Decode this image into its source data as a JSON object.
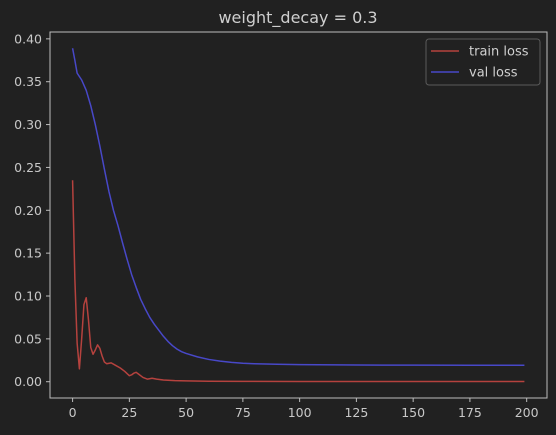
{
  "chart_data": {
    "type": "line",
    "title": "weight_decay = 0.3",
    "xlabel": "",
    "ylabel": "",
    "xlim": [
      -9.95,
      208.95
    ],
    "ylim": [
      -0.019,
      0.408
    ],
    "xticks": [
      0,
      25,
      50,
      75,
      100,
      125,
      150,
      175,
      200
    ],
    "yticks": [
      0.0,
      0.05,
      0.1,
      0.15,
      0.2,
      0.25,
      0.3,
      0.35,
      0.4
    ],
    "ytick_labels": [
      "0.00",
      "0.05",
      "0.10",
      "0.15",
      "0.20",
      "0.25",
      "0.30",
      "0.35",
      "0.40"
    ],
    "legend": {
      "placement": "upper-right"
    },
    "grid": false,
    "colors": {
      "background": "#212121",
      "axes": "#bdbdbd"
    },
    "series": [
      {
        "name": "train loss",
        "color": "#b5423e",
        "points": [
          [
            0,
            0.235
          ],
          [
            1,
            0.12
          ],
          [
            2,
            0.045
          ],
          [
            3,
            0.015
          ],
          [
            4,
            0.05
          ],
          [
            5,
            0.09
          ],
          [
            6,
            0.098
          ],
          [
            7,
            0.072
          ],
          [
            8,
            0.04
          ],
          [
            9,
            0.032
          ],
          [
            10,
            0.037
          ],
          [
            11,
            0.043
          ],
          [
            12,
            0.039
          ],
          [
            13,
            0.03
          ],
          [
            14,
            0.023
          ],
          [
            15,
            0.021
          ],
          [
            17,
            0.022
          ],
          [
            19,
            0.019
          ],
          [
            21,
            0.016
          ],
          [
            23,
            0.012
          ],
          [
            25,
            0.007
          ],
          [
            26,
            0.008
          ],
          [
            27,
            0.01
          ],
          [
            28,
            0.011
          ],
          [
            29,
            0.009
          ],
          [
            31,
            0.005
          ],
          [
            33,
            0.003
          ],
          [
            35,
            0.004
          ],
          [
            37,
            0.003
          ],
          [
            40,
            0.002
          ],
          [
            45,
            0.0013
          ],
          [
            50,
            0.001
          ],
          [
            60,
            0.0006
          ],
          [
            75,
            0.0004
          ],
          [
            100,
            0.0003
          ],
          [
            150,
            0.0002
          ],
          [
            199,
            0.0002
          ]
        ]
      },
      {
        "name": "val loss",
        "color": "#4848c8",
        "points": [
          [
            0,
            0.389
          ],
          [
            1,
            0.375
          ],
          [
            2,
            0.36
          ],
          [
            4,
            0.352
          ],
          [
            6,
            0.34
          ],
          [
            8,
            0.322
          ],
          [
            10,
            0.3
          ],
          [
            12,
            0.275
          ],
          [
            14,
            0.248
          ],
          [
            16,
            0.222
          ],
          [
            18,
            0.2
          ],
          [
            20,
            0.182
          ],
          [
            22,
            0.162
          ],
          [
            24,
            0.143
          ],
          [
            26,
            0.125
          ],
          [
            28,
            0.11
          ],
          [
            30,
            0.096
          ],
          [
            32,
            0.085
          ],
          [
            34,
            0.075
          ],
          [
            36,
            0.067
          ],
          [
            38,
            0.06
          ],
          [
            40,
            0.053
          ],
          [
            42,
            0.047
          ],
          [
            44,
            0.042
          ],
          [
            46,
            0.038
          ],
          [
            48,
            0.035
          ],
          [
            50,
            0.033
          ],
          [
            55,
            0.029
          ],
          [
            60,
            0.026
          ],
          [
            65,
            0.024
          ],
          [
            70,
            0.0225
          ],
          [
            75,
            0.0215
          ],
          [
            80,
            0.021
          ],
          [
            90,
            0.0203
          ],
          [
            100,
            0.02
          ],
          [
            125,
            0.0195
          ],
          [
            150,
            0.0193
          ],
          [
            175,
            0.0192
          ],
          [
            199,
            0.0192
          ]
        ]
      }
    ]
  }
}
